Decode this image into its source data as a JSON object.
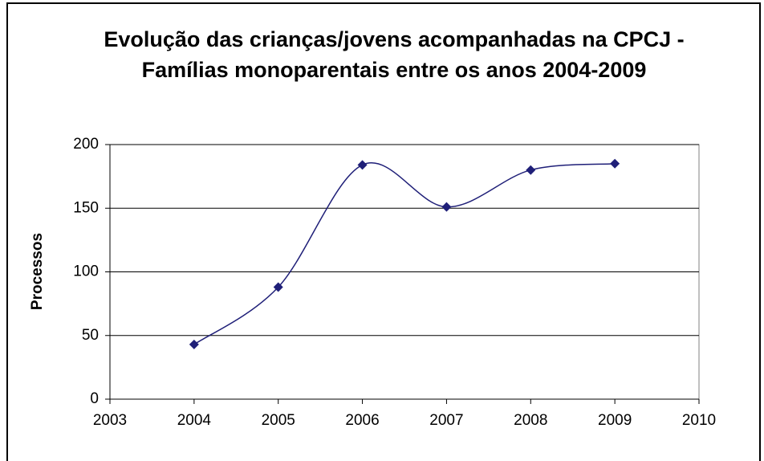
{
  "chart_data": {
    "type": "scatter",
    "title": "Evolução das crianças/jovens acompanhadas na CPCJ - Famílias monoparentais entre os anos 2004-2009",
    "y_label": "Processos",
    "x": [
      2004,
      2005,
      2006,
      2007,
      2008,
      2009
    ],
    "series": [
      {
        "name": "Processos",
        "color": "#1f1f78",
        "values": [
          43,
          88,
          184,
          151,
          180,
          185
        ]
      }
    ],
    "xlim": [
      2003,
      2010
    ],
    "xticks": [
      2003,
      2004,
      2005,
      2006,
      2007,
      2008,
      2009,
      2010
    ],
    "ylim": [
      0,
      200
    ],
    "yticks": [
      0,
      50,
      100,
      150,
      200
    ],
    "grid": true,
    "smooth": true
  }
}
